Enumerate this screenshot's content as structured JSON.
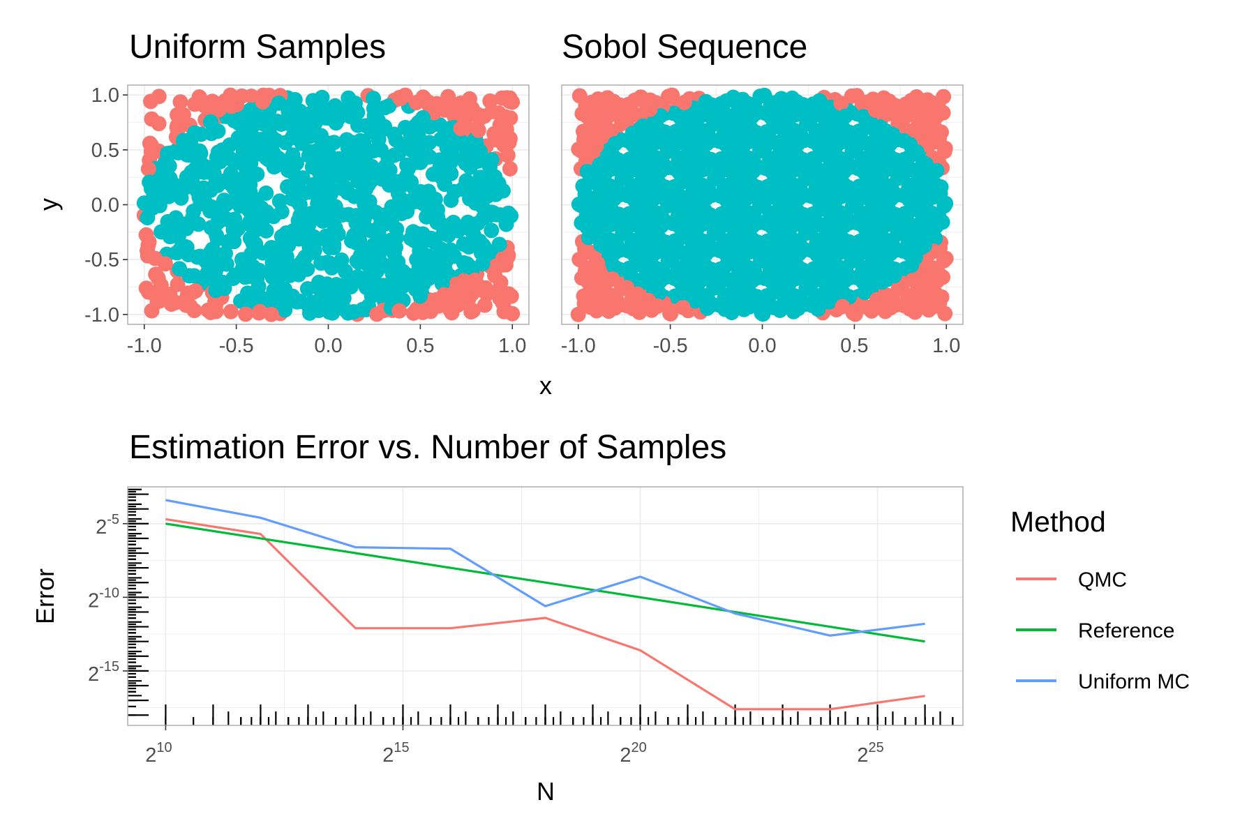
{
  "colors": {
    "outside": "#F8766D",
    "inside": "#00BFC4",
    "qmc": "#F8766D",
    "reference": "#00BA38",
    "uniform_mc": "#619CFF"
  },
  "chart_data": [
    {
      "type": "scatter",
      "title": "Uniform Samples",
      "xlabel": "x",
      "ylabel": "y",
      "xlim": [
        -1,
        1
      ],
      "ylim": [
        -1,
        1
      ],
      "xticks": [
        "-1.0",
        "-0.5",
        "0.0",
        "0.5",
        "1.0"
      ],
      "yticks": [
        "-1.0",
        "-0.5",
        "0.0",
        "0.5",
        "1.0"
      ],
      "grid": true,
      "sampling": "uniform random points in [-1,1]x[-1,1]; cyan inside unit circle, red outside"
    },
    {
      "type": "scatter",
      "title": "Sobol Sequence",
      "xlabel": "x",
      "ylabel": "",
      "xlim": [
        -1,
        1
      ],
      "ylim": [
        -1,
        1
      ],
      "xticks": [
        "-1.0",
        "-0.5",
        "0.0",
        "0.5",
        "1.0"
      ],
      "grid": true,
      "sampling": "Sobol quasi-random points in [-1,1]x[-1,1]; cyan inside unit circle, red outside"
    },
    {
      "type": "line",
      "title": "Estimation Error vs. Number of Samples",
      "xlabel": "N",
      "ylabel": "Error",
      "xscale": "log2",
      "yscale": "log2",
      "xticks": [
        "10",
        "15",
        "20",
        "25"
      ],
      "yticks": [
        "-5",
        "-10",
        "-15"
      ],
      "tick_base": "2",
      "legend_title": "Method",
      "legend_position": "right",
      "x_exponents": [
        10,
        12,
        14,
        16,
        18,
        20,
        22,
        24,
        26
      ],
      "series": [
        {
          "name": "QMC",
          "log2_values": [
            -4.7,
            -5.7,
            -12.1,
            -12.1,
            -11.4,
            -13.6,
            -17.6,
            -17.6,
            -16.7
          ]
        },
        {
          "name": "Reference",
          "log2_values": [
            -5.0,
            -6.0,
            -7.0,
            -8.0,
            -9.0,
            -10.0,
            -11.0,
            -12.0,
            -13.0
          ]
        },
        {
          "name": "Uniform MC",
          "log2_values": [
            -3.4,
            -4.6,
            -6.6,
            -6.7,
            -10.6,
            -8.6,
            -11.1,
            -12.6,
            -11.8
          ]
        }
      ]
    }
  ]
}
